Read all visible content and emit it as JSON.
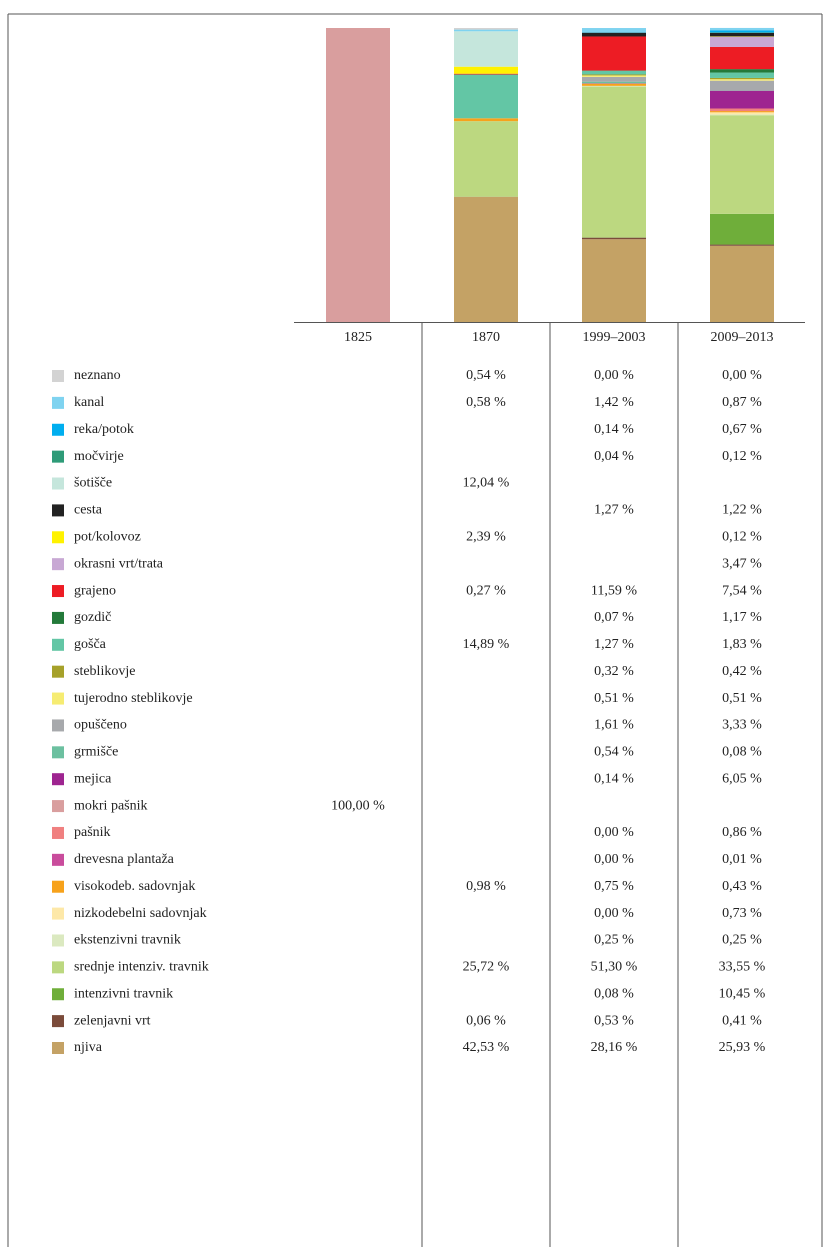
{
  "chart_data": {
    "type": "stacked_bar",
    "categories": [
      "1825",
      "1870",
      "1999–2003",
      "2009–2013"
    ],
    "ylim": [
      0,
      100
    ],
    "series": [
      {
        "name": "neznano",
        "color": "#d3d3d3",
        "values": [
          null,
          0.54,
          0.0,
          0.0
        ],
        "value_labels": [
          null,
          "0,54 %",
          "0,00 %",
          "0,00 %"
        ]
      },
      {
        "name": "kanal",
        "color": "#7fd3f0",
        "values": [
          null,
          0.58,
          1.42,
          0.87
        ],
        "value_labels": [
          null,
          "0,58 %",
          "1,42 %",
          "0,87 %"
        ]
      },
      {
        "name": "reka/potok",
        "color": "#00aeef",
        "values": [
          null,
          null,
          0.14,
          0.67
        ],
        "value_labels": [
          null,
          null,
          "0,14 %",
          "0,67 %"
        ]
      },
      {
        "name": "močvirje",
        "color": "#2e9b78",
        "values": [
          null,
          null,
          0.04,
          0.12
        ],
        "value_labels": [
          null,
          null,
          "0,04 %",
          "0,12 %"
        ]
      },
      {
        "name": "šotišče",
        "color": "#c5e6dc",
        "values": [
          null,
          12.04,
          null,
          null
        ],
        "value_labels": [
          null,
          "12,04 %",
          null,
          null
        ]
      },
      {
        "name": "cesta",
        "color": "#222222",
        "values": [
          null,
          null,
          1.27,
          1.22
        ],
        "value_labels": [
          null,
          null,
          "1,27 %",
          "1,22 %"
        ]
      },
      {
        "name": "pot/kolovoz",
        "color": "#fff200",
        "values": [
          null,
          2.39,
          null,
          0.12
        ],
        "value_labels": [
          null,
          "2,39 %",
          null,
          "0,12 %"
        ]
      },
      {
        "name": "okrasni vrt/trata",
        "color": "#c8a8d4",
        "values": [
          null,
          null,
          null,
          3.47
        ],
        "value_labels": [
          null,
          null,
          null,
          "3,47 %"
        ]
      },
      {
        "name": "grajeno",
        "color": "#ed1c24",
        "values": [
          null,
          0.27,
          11.59,
          7.54
        ],
        "value_labels": [
          null,
          "0,27 %",
          "11,59 %",
          "7,54 %"
        ]
      },
      {
        "name": "gozdič",
        "color": "#237a3a",
        "values": [
          null,
          null,
          0.07,
          1.17
        ],
        "value_labels": [
          null,
          null,
          "0,07 %",
          "1,17 %"
        ]
      },
      {
        "name": "gošča",
        "color": "#63c6a5",
        "values": [
          null,
          14.89,
          1.27,
          1.83
        ],
        "value_labels": [
          null,
          "14,89 %",
          "1,27 %",
          "1,83 %"
        ]
      },
      {
        "name": "steblikovje",
        "color": "#a6a12a",
        "values": [
          null,
          null,
          0.32,
          0.42
        ],
        "value_labels": [
          null,
          null,
          "0,32 %",
          "0,42 %"
        ]
      },
      {
        "name": "tujerodno steblikovje",
        "color": "#f6ec72",
        "values": [
          null,
          null,
          0.51,
          0.51
        ],
        "value_labels": [
          null,
          null,
          "0,51 %",
          "0,51 %"
        ]
      },
      {
        "name": "opuščeno",
        "color": "#a7a9ac",
        "values": [
          null,
          null,
          1.61,
          3.33
        ],
        "value_labels": [
          null,
          null,
          "1,61 %",
          "3,33 %"
        ]
      },
      {
        "name": "grmišče",
        "color": "#6cc0a0",
        "values": [
          null,
          null,
          0.54,
          0.08
        ],
        "value_labels": [
          null,
          null,
          "0,54 %",
          "0,08 %"
        ]
      },
      {
        "name": "mejica",
        "color": "#9e2490",
        "values": [
          null,
          null,
          0.14,
          6.05
        ],
        "value_labels": [
          null,
          null,
          "0,14 %",
          "6,05 %"
        ]
      },
      {
        "name": "mokri pašnik",
        "color": "#d99e9e",
        "values": [
          100,
          null,
          null,
          null
        ],
        "value_labels": [
          "100,00 %",
          null,
          null,
          null
        ]
      },
      {
        "name": "pašnik",
        "color": "#f08080",
        "values": [
          null,
          null,
          0.0,
          0.86
        ],
        "value_labels": [
          null,
          null,
          "0,00 %",
          "0,86 %"
        ]
      },
      {
        "name": "drevesna plantaža",
        "color": "#c94c9c",
        "values": [
          null,
          null,
          0.0,
          0.01
        ],
        "value_labels": [
          null,
          null,
          "0,00 %",
          "0,01 %"
        ]
      },
      {
        "name": "visokodeb. sadovnjak",
        "color": "#f7a21b",
        "values": [
          null,
          0.98,
          0.75,
          0.43
        ],
        "value_labels": [
          null,
          "0,98 %",
          "0,75 %",
          "0,43 %"
        ]
      },
      {
        "name": "nizkodebelni sadovnjak",
        "color": "#fde8a8",
        "values": [
          null,
          null,
          0.0,
          0.73
        ],
        "value_labels": [
          null,
          null,
          "0,00 %",
          "0,73 %"
        ]
      },
      {
        "name": "ekstenzivni travnik",
        "color": "#dbe9c0",
        "values": [
          null,
          null,
          0.25,
          0.25
        ],
        "value_labels": [
          null,
          null,
          "0,25 %",
          "0,25 %"
        ]
      },
      {
        "name": "srednje intenziv. travnik",
        "color": "#bcd880",
        "values": [
          null,
          25.72,
          51.3,
          33.55
        ],
        "value_labels": [
          null,
          "25,72 %",
          "51,30 %",
          "33,55 %"
        ]
      },
      {
        "name": "intenzivni travnik",
        "color": "#6fae3a",
        "values": [
          null,
          null,
          0.08,
          10.45
        ],
        "value_labels": [
          null,
          null,
          "0,08 %",
          "10,45 %"
        ]
      },
      {
        "name": "zelenjavni vrt",
        "color": "#7b4b3a",
        "values": [
          null,
          0.06,
          0.53,
          0.41
        ],
        "value_labels": [
          null,
          "0,06 %",
          "0,53 %",
          "0,41 %"
        ]
      },
      {
        "name": "njiva",
        "color": "#c4a265",
        "values": [
          null,
          42.53,
          28.16,
          25.93
        ],
        "value_labels": [
          null,
          "42,53 %",
          "28,16 %",
          "25,93 %"
        ]
      }
    ]
  }
}
